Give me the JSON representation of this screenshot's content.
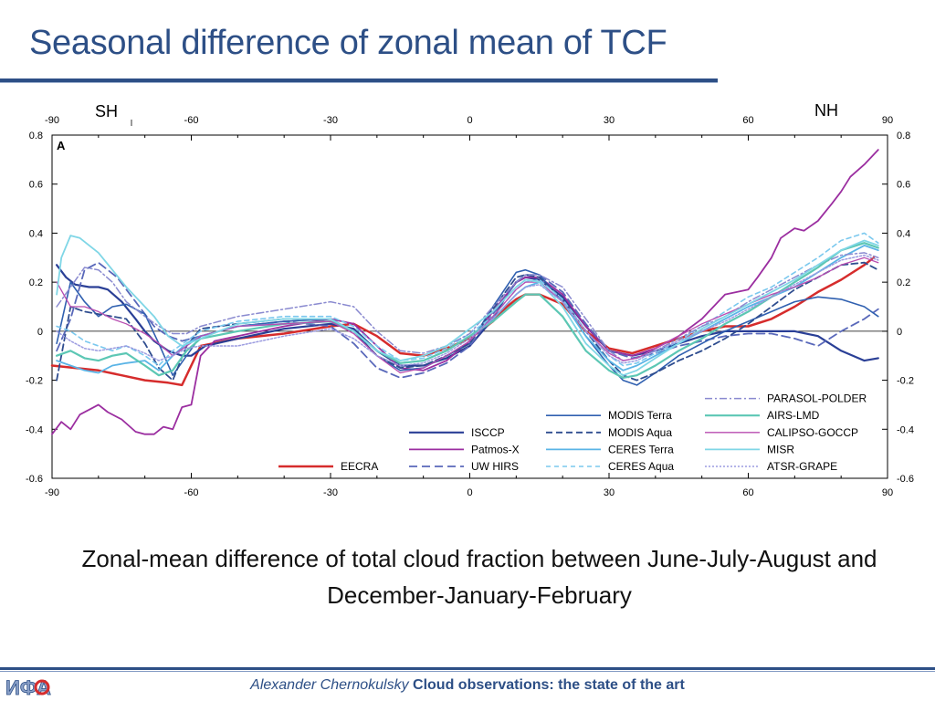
{
  "slide": {
    "title": "Seasonal difference of zonal mean of TCF",
    "caption": "Zonal-mean difference of total cloud fraction between June-July-August and December-January-February",
    "footer": {
      "author": "Alexander Chernokulsky",
      "talk": "Cloud observations: the state of the art"
    },
    "logo": "ИФА"
  },
  "chart_data": {
    "type": "line",
    "panel_label": "A",
    "hemisphere_labels": [
      "SH",
      "NH"
    ],
    "xlim": [
      -90,
      90
    ],
    "ylim": [
      -0.6,
      0.8
    ],
    "xticks": [
      -90,
      -60,
      -30,
      0,
      30,
      60,
      90
    ],
    "yticks": [
      -0.6,
      -0.4,
      -0.2,
      0,
      0.2,
      0.4,
      0.6,
      0.8
    ],
    "xlabel": "",
    "ylabel": "",
    "grid": false,
    "zero_line": true,
    "legend_placement": "bottom-right",
    "series": [
      {
        "name": "EECRA",
        "color": "#d62c2c",
        "dash": "",
        "width": 2.5,
        "x": [
          -90,
          -80,
          -75,
          -70,
          -65,
          -62,
          -58,
          -50,
          -40,
          -30,
          -25,
          -20,
          -15,
          -10,
          -5,
          0,
          5,
          8,
          10,
          12,
          15,
          20,
          25,
          30,
          35,
          40,
          45,
          50,
          55,
          60,
          65,
          70,
          75,
          80,
          85,
          87
        ],
        "y": [
          -0.14,
          -0.16,
          -0.18,
          -0.2,
          -0.21,
          -0.22,
          -0.06,
          -0.03,
          -0.01,
          0.02,
          0.03,
          -0.02,
          -0.09,
          -0.1,
          -0.07,
          -0.03,
          0.04,
          0.1,
          0.13,
          0.15,
          0.15,
          0.11,
          0.0,
          -0.07,
          -0.09,
          -0.06,
          -0.03,
          0.0,
          0.02,
          0.02,
          0.05,
          0.1,
          0.16,
          0.21,
          0.27,
          0.3
        ]
      },
      {
        "name": "ISCCP",
        "color": "#2a3f96",
        "dash": "",
        "width": 2.2,
        "x": [
          -89,
          -87,
          -85,
          -82,
          -80,
          -78,
          -75,
          -72,
          -70,
          -68,
          -65,
          -62,
          -60,
          -57,
          -50,
          -40,
          -30,
          -25,
          -20,
          -15,
          -10,
          -5,
          0,
          5,
          8,
          10,
          12,
          15,
          20,
          25,
          30,
          35,
          40,
          45,
          50,
          55,
          60,
          65,
          70,
          75,
          80,
          85,
          88
        ],
        "y": [
          0.27,
          0.22,
          0.19,
          0.18,
          0.18,
          0.17,
          0.12,
          0.05,
          0.0,
          -0.04,
          -0.08,
          -0.1,
          -0.1,
          -0.06,
          -0.03,
          0.01,
          0.03,
          0.01,
          -0.08,
          -0.14,
          -0.14,
          -0.11,
          -0.06,
          0.05,
          0.15,
          0.2,
          0.22,
          0.21,
          0.14,
          0.02,
          -0.08,
          -0.1,
          -0.08,
          -0.05,
          -0.02,
          0.0,
          0.0,
          0.0,
          0.0,
          -0.02,
          -0.08,
          -0.12,
          -0.11
        ]
      },
      {
        "name": "Patmos-X",
        "color": "#9b2ea0",
        "dash": "",
        "width": 1.8,
        "x": [
          -90,
          -88,
          -86,
          -84,
          -82,
          -80,
          -78,
          -75,
          -72,
          -70,
          -68,
          -66,
          -64,
          -62,
          -60,
          -58,
          -55,
          -50,
          -40,
          -30,
          -25,
          -20,
          -15,
          -10,
          -5,
          0,
          5,
          10,
          12,
          15,
          20,
          25,
          30,
          35,
          40,
          45,
          50,
          55,
          60,
          62,
          65,
          67,
          70,
          72,
          75,
          78,
          80,
          82,
          85,
          88
        ],
        "y": [
          -0.42,
          -0.37,
          -0.4,
          -0.34,
          -0.32,
          -0.3,
          -0.33,
          -0.36,
          -0.41,
          -0.42,
          -0.42,
          -0.39,
          -0.4,
          -0.31,
          -0.3,
          -0.1,
          -0.04,
          -0.02,
          0.02,
          0.05,
          0.03,
          -0.06,
          -0.15,
          -0.16,
          -0.12,
          -0.04,
          0.08,
          0.2,
          0.22,
          0.22,
          0.15,
          0.02,
          -0.08,
          -0.1,
          -0.07,
          -0.02,
          0.05,
          0.15,
          0.17,
          0.22,
          0.3,
          0.38,
          0.42,
          0.41,
          0.45,
          0.52,
          0.57,
          0.63,
          0.68,
          0.74
        ]
      },
      {
        "name": "UW HIRS",
        "color": "#5968ba",
        "dash": "9,5",
        "width": 1.8,
        "x": [
          -89,
          -86,
          -83,
          -80,
          -76,
          -72,
          -68,
          -65,
          -62,
          -58,
          -50,
          -40,
          -30,
          -25,
          -20,
          -15,
          -10,
          -5,
          0,
          5,
          10,
          12,
          15,
          20,
          25,
          30,
          35,
          40,
          45,
          50,
          55,
          60,
          65,
          70,
          75,
          80,
          85,
          88
        ],
        "y": [
          -0.08,
          0.05,
          0.25,
          0.28,
          0.22,
          0.12,
          0.02,
          -0.02,
          -0.04,
          -0.02,
          0.02,
          0.04,
          0.02,
          -0.05,
          -0.15,
          -0.19,
          -0.17,
          -0.13,
          -0.06,
          0.07,
          0.2,
          0.23,
          0.23,
          0.16,
          0.03,
          -0.08,
          -0.11,
          -0.09,
          -0.06,
          -0.04,
          -0.02,
          -0.01,
          -0.01,
          -0.03,
          -0.06,
          0.0,
          0.05,
          0.09
        ]
      },
      {
        "name": "MODIS Terra",
        "color": "#3060b0",
        "dash": "",
        "width": 1.6,
        "x": [
          -89,
          -86,
          -83,
          -80,
          -77,
          -74,
          -70,
          -67,
          -64,
          -61,
          -58,
          -50,
          -40,
          -30,
          -25,
          -20,
          -15,
          -10,
          -5,
          0,
          5,
          10,
          12,
          15,
          20,
          25,
          30,
          33,
          36,
          40,
          45,
          50,
          55,
          60,
          65,
          70,
          75,
          80,
          85,
          88
        ],
        "y": [
          -0.05,
          0.2,
          0.12,
          0.06,
          0.1,
          0.11,
          0.07,
          -0.05,
          -0.18,
          -0.1,
          -0.02,
          0.02,
          0.04,
          0.05,
          0.0,
          -0.1,
          -0.16,
          -0.15,
          -0.1,
          -0.05,
          0.1,
          0.24,
          0.25,
          0.23,
          0.12,
          -0.02,
          -0.14,
          -0.2,
          -0.22,
          -0.17,
          -0.1,
          -0.05,
          0.0,
          0.04,
          0.08,
          0.12,
          0.14,
          0.13,
          0.1,
          0.06
        ]
      },
      {
        "name": "MODIS Aqua",
        "color": "#2f4d8f",
        "dash": "7,4",
        "width": 1.8,
        "x": [
          -89,
          -86,
          -83,
          -80,
          -77,
          -74,
          -70,
          -67,
          -64,
          -61,
          -58,
          -50,
          -40,
          -30,
          -25,
          -20,
          -15,
          -10,
          -5,
          0,
          5,
          10,
          12,
          15,
          20,
          25,
          30,
          33,
          36,
          40,
          45,
          50,
          55,
          60,
          65,
          70,
          75,
          80,
          85,
          88
        ],
        "y": [
          -0.2,
          0.1,
          0.08,
          0.07,
          0.06,
          0.05,
          -0.05,
          -0.15,
          -0.2,
          -0.06,
          0.01,
          0.03,
          0.05,
          0.05,
          0.0,
          -0.1,
          -0.15,
          -0.14,
          -0.1,
          -0.05,
          0.09,
          0.22,
          0.23,
          0.22,
          0.13,
          0.0,
          -0.12,
          -0.18,
          -0.2,
          -0.17,
          -0.12,
          -0.08,
          -0.03,
          0.03,
          0.1,
          0.17,
          0.22,
          0.27,
          0.28,
          0.25
        ]
      },
      {
        "name": "CERES Terra",
        "color": "#5ab4e6",
        "dash": "",
        "width": 1.8,
        "x": [
          -89,
          -86,
          -83,
          -80,
          -77,
          -74,
          -70,
          -67,
          -64,
          -61,
          -58,
          -50,
          -40,
          -30,
          -25,
          -20,
          -15,
          -10,
          -5,
          0,
          5,
          10,
          12,
          15,
          20,
          25,
          30,
          33,
          36,
          40,
          45,
          50,
          55,
          60,
          65,
          70,
          75,
          80,
          85,
          88
        ],
        "y": [
          -0.12,
          -0.14,
          -0.16,
          -0.17,
          -0.14,
          -0.13,
          -0.12,
          -0.16,
          -0.1,
          -0.05,
          -0.02,
          0.02,
          0.03,
          0.04,
          0.0,
          -0.08,
          -0.13,
          -0.12,
          -0.08,
          -0.02,
          0.05,
          0.15,
          0.18,
          0.2,
          0.12,
          -0.02,
          -0.12,
          -0.16,
          -0.14,
          -0.1,
          -0.05,
          0.0,
          0.05,
          0.1,
          0.14,
          0.18,
          0.24,
          0.3,
          0.35,
          0.33
        ]
      },
      {
        "name": "CERES Aqua",
        "color": "#7ac8ee",
        "dash": "5,4",
        "width": 1.6,
        "x": [
          -89,
          -86,
          -83,
          -80,
          -77,
          -74,
          -70,
          -67,
          -64,
          -61,
          -58,
          -50,
          -40,
          -30,
          -25,
          -20,
          -15,
          -10,
          -5,
          0,
          5,
          10,
          12,
          15,
          20,
          25,
          30,
          33,
          36,
          40,
          45,
          50,
          55,
          60,
          65,
          70,
          75,
          80,
          85,
          88
        ],
        "y": [
          0.02,
          0.0,
          -0.04,
          -0.06,
          -0.08,
          -0.06,
          -0.1,
          -0.14,
          -0.08,
          -0.04,
          0.0,
          0.04,
          0.06,
          0.06,
          0.02,
          -0.06,
          -0.12,
          -0.11,
          -0.07,
          -0.01,
          0.06,
          0.17,
          0.2,
          0.21,
          0.13,
          0.0,
          -0.1,
          -0.14,
          -0.13,
          -0.09,
          -0.04,
          0.02,
          0.08,
          0.14,
          0.18,
          0.24,
          0.3,
          0.37,
          0.4,
          0.36
        ]
      },
      {
        "name": "PARASOL-POLDER",
        "color": "#8a8ad0",
        "dash": "8,3,2,3",
        "width": 1.5,
        "x": [
          -89,
          -86,
          -83,
          -80,
          -77,
          -74,
          -70,
          -67,
          -64,
          -61,
          -58,
          -50,
          -40,
          -30,
          -25,
          -20,
          -15,
          -10,
          -5,
          0,
          5,
          10,
          12,
          15,
          20,
          25,
          30,
          33,
          36,
          40,
          45,
          50,
          55,
          60,
          65,
          70,
          75,
          80,
          85,
          88
        ],
        "y": [
          0.1,
          0.18,
          0.26,
          0.25,
          0.2,
          0.12,
          0.06,
          0.02,
          -0.01,
          -0.01,
          0.02,
          0.06,
          0.09,
          0.12,
          0.1,
          0.0,
          -0.08,
          -0.09,
          -0.06,
          -0.01,
          0.1,
          0.2,
          0.23,
          0.23,
          0.18,
          0.05,
          -0.08,
          -0.12,
          -0.11,
          -0.08,
          -0.03,
          0.02,
          0.06,
          0.12,
          0.17,
          0.22,
          0.27,
          0.31,
          0.32,
          0.3
        ]
      },
      {
        "name": "AIRS-LMD",
        "color": "#5cc7b4",
        "dash": "",
        "width": 2.2,
        "x": [
          -89,
          -86,
          -83,
          -80,
          -77,
          -74,
          -70,
          -67,
          -64,
          -61,
          -58,
          -50,
          -40,
          -30,
          -25,
          -20,
          -15,
          -10,
          -5,
          0,
          5,
          10,
          12,
          15,
          20,
          25,
          30,
          33,
          36,
          40,
          45,
          50,
          55,
          60,
          65,
          70,
          75,
          80,
          85,
          88
        ],
        "y": [
          -0.1,
          -0.08,
          -0.11,
          -0.12,
          -0.1,
          -0.09,
          -0.14,
          -0.18,
          -0.16,
          -0.08,
          -0.03,
          0.0,
          0.03,
          0.04,
          0.0,
          -0.08,
          -0.13,
          -0.12,
          -0.08,
          -0.02,
          0.04,
          0.12,
          0.15,
          0.15,
          0.06,
          -0.08,
          -0.16,
          -0.19,
          -0.18,
          -0.14,
          -0.08,
          -0.03,
          0.03,
          0.08,
          0.14,
          0.2,
          0.26,
          0.33,
          0.36,
          0.34
        ]
      },
      {
        "name": "CALIPSO-GOCCP",
        "color": "#b84cb0",
        "dash": "",
        "width": 1.3,
        "x": [
          -89,
          -86,
          -83,
          -80,
          -77,
          -74,
          -70,
          -67,
          -64,
          -61,
          -58,
          -50,
          -40,
          -30,
          -25,
          -20,
          -15,
          -10,
          -5,
          0,
          5,
          10,
          12,
          15,
          20,
          25,
          30,
          33,
          36,
          40,
          45,
          50,
          55,
          60,
          65,
          70,
          75,
          80,
          85,
          88
        ],
        "y": [
          0.2,
          0.1,
          0.1,
          0.08,
          0.05,
          0.03,
          -0.01,
          -0.05,
          -0.1,
          -0.06,
          -0.02,
          0.02,
          0.03,
          0.04,
          -0.01,
          -0.1,
          -0.17,
          -0.15,
          -0.1,
          -0.04,
          0.06,
          0.17,
          0.2,
          0.2,
          0.12,
          0.0,
          -0.09,
          -0.12,
          -0.11,
          -0.07,
          -0.02,
          0.03,
          0.07,
          0.11,
          0.15,
          0.18,
          0.22,
          0.27,
          0.3,
          0.28
        ]
      },
      {
        "name": "MISR",
        "color": "#7fd6e6",
        "dash": "",
        "width": 1.8,
        "x": [
          -89,
          -88,
          -86,
          -84,
          -82,
          -80,
          -77,
          -74,
          -71,
          -68,
          -65,
          -62,
          -58,
          -50,
          -40,
          -30,
          -25,
          -20,
          -15,
          -10,
          -5,
          0,
          5,
          10,
          12,
          15,
          20,
          25,
          30,
          33,
          36,
          40,
          45,
          50,
          55,
          60,
          65,
          70,
          75,
          80,
          85,
          88
        ],
        "y": [
          0.15,
          0.3,
          0.39,
          0.38,
          0.35,
          0.32,
          0.25,
          0.18,
          0.12,
          0.06,
          -0.02,
          -0.06,
          -0.03,
          0.03,
          0.05,
          0.05,
          0.0,
          -0.08,
          -0.12,
          -0.1,
          -0.06,
          0.01,
          0.08,
          0.18,
          0.21,
          0.2,
          0.1,
          -0.05,
          -0.14,
          -0.18,
          -0.16,
          -0.11,
          -0.05,
          0.01,
          0.06,
          0.11,
          0.16,
          0.21,
          0.27,
          0.33,
          0.37,
          0.35
        ]
      },
      {
        "name": "ATSR-GRAPE",
        "color": "#9b9be0",
        "dash": "2,2",
        "width": 1.5,
        "x": [
          -89,
          -86,
          -83,
          -80,
          -77,
          -74,
          -70,
          -67,
          -64,
          -61,
          -58,
          -50,
          -40,
          -30,
          -25,
          -20,
          -15,
          -10,
          -5,
          0,
          5,
          10,
          12,
          15,
          20,
          25,
          30,
          33,
          36,
          40,
          45,
          50,
          55,
          60,
          65,
          70,
          75,
          80,
          85,
          88
        ],
        "y": [
          0.0,
          -0.04,
          -0.07,
          -0.08,
          -0.07,
          -0.06,
          -0.09,
          -0.12,
          -0.1,
          -0.07,
          -0.06,
          -0.06,
          -0.02,
          0.01,
          -0.03,
          -0.1,
          -0.14,
          -0.13,
          -0.09,
          -0.03,
          0.05,
          0.15,
          0.18,
          0.19,
          0.12,
          0.0,
          -0.1,
          -0.13,
          -0.12,
          -0.08,
          -0.04,
          0.0,
          0.04,
          0.09,
          0.14,
          0.19,
          0.24,
          0.29,
          0.31,
          0.29
        ]
      }
    ],
    "legend_columns": [
      [
        "EECRA"
      ],
      [
        "ISCCP",
        "Patmos-X",
        "UW HIRS"
      ],
      [
        "MODIS Terra",
        "MODIS Aqua",
        "CERES Terra",
        "CERES Aqua"
      ],
      [
        "PARASOL-POLDER",
        "AIRS-LMD",
        "CALIPSO-GOCCP",
        "MISR",
        "ATSR-GRAPE"
      ]
    ]
  }
}
